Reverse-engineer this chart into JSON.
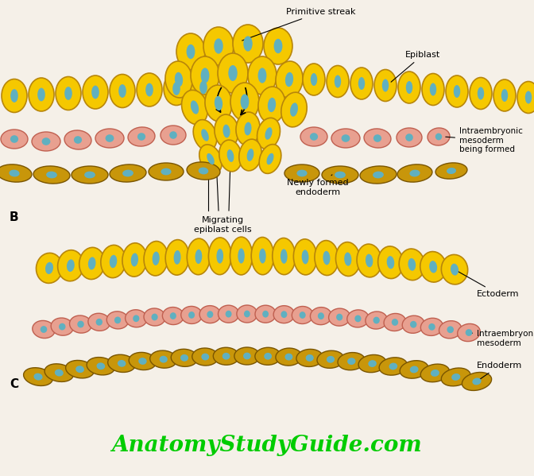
{
  "bg_color": "#f5f0e8",
  "yellow_cell_color": "#F5C800",
  "yellow_cell_edge": "#B8860A",
  "pink_cell_color": "#E8A090",
  "pink_cell_edge": "#C06050",
  "brown_cell_color": "#C8960A",
  "brown_cell_edge": "#7A5500",
  "nucleus_color": "#60B0C0",
  "title_text": "AnatomyStudyGuide.com",
  "title_color": "#00CC00",
  "label_B": "B",
  "label_C": "C",
  "label_primitive_streak": "Primitive streak",
  "label_epiblast": "Epiblast",
  "label_intraembryonic": "Intraembryonic\nmesoderm\nbeing formed",
  "label_newly_formed": "Newly formed\nendoderm",
  "label_migrating": "Migrating\nepiblast cells",
  "label_ectoderm": "Ectoderm",
  "label_intra_meso": "Intraembryonic\nmesoderm",
  "label_endoderm": "Endoderm"
}
